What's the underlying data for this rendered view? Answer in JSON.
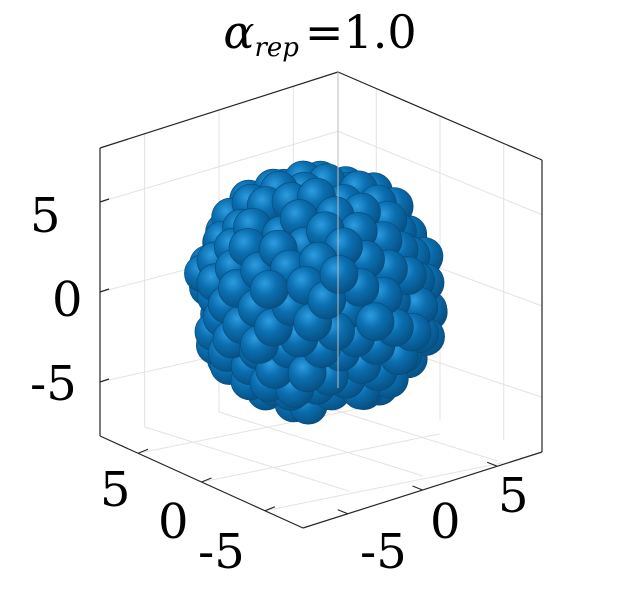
{
  "chart_data": {
    "type": "scatter3d",
    "title": {
      "symbol": "α",
      "subscript": "rep",
      "equals": "=",
      "value": "1.0"
    },
    "marker": "sphere",
    "marker_color": "#0b6fb0",
    "axes": {
      "x": {
        "lim": [
          -8,
          8
        ],
        "ticks": [
          "5",
          "0",
          "-5"
        ]
      },
      "y": {
        "lim": [
          -8,
          8
        ],
        "ticks": [
          "-5",
          "0",
          "5"
        ]
      },
      "z": {
        "lim": [
          -8,
          8
        ],
        "ticks": [
          "5",
          "0",
          "-5"
        ]
      }
    },
    "grid": true,
    "cluster": {
      "center": [
        0,
        0,
        0
      ],
      "radius": 5.2,
      "sphere_count": 220
    }
  }
}
